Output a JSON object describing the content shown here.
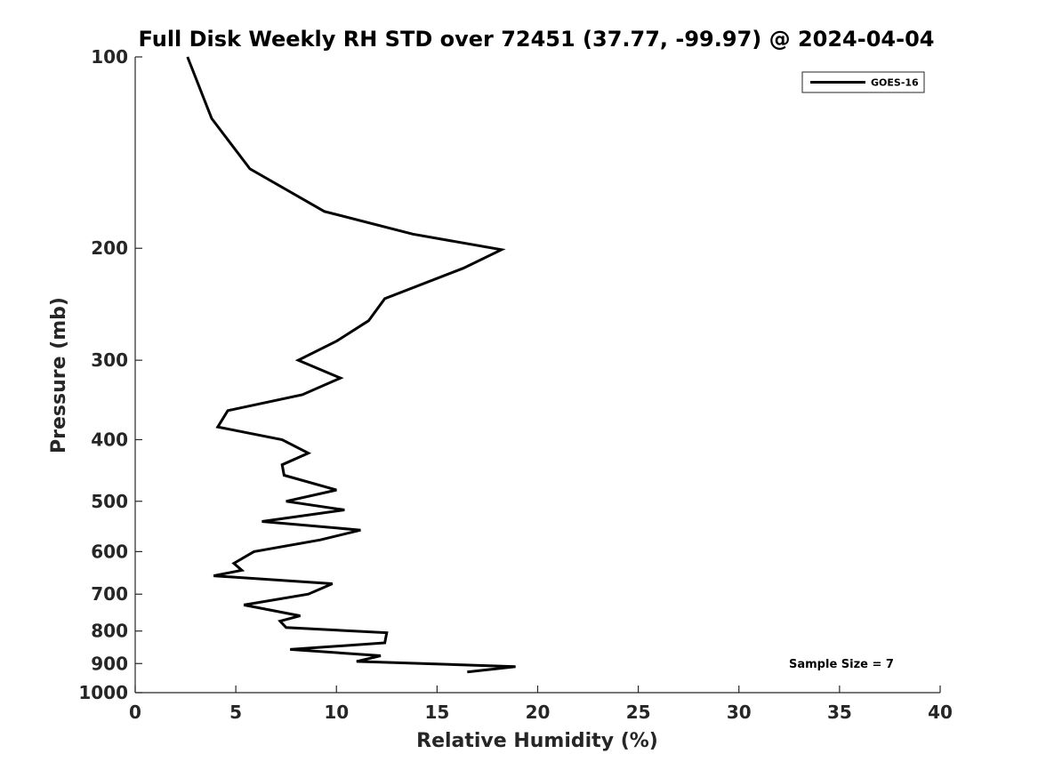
{
  "chart_data": {
    "type": "line",
    "title": "Full Disk Weekly RH STD over 72451 (37.77, -99.97) @ 2024-04-04",
    "xlabel": "Relative Humidity (%)",
    "ylabel": "Pressure (mb)",
    "xlim": [
      0,
      40
    ],
    "ylim": [
      100,
      1000
    ],
    "yscale": "log",
    "yreversed": true,
    "xticks": [
      0,
      5,
      10,
      15,
      20,
      25,
      30,
      35,
      40
    ],
    "yticks": [
      100,
      200,
      300,
      400,
      500,
      600,
      700,
      800,
      900,
      1000
    ],
    "grid": false,
    "legend_position": "top-right",
    "series": [
      {
        "name": "GOES-16",
        "color": "#000000",
        "points": [
          [
            2.6,
            100
          ],
          [
            3.8,
            125
          ],
          [
            5.7,
            150
          ],
          [
            9.4,
            175
          ],
          [
            13.8,
            190
          ],
          [
            18.2,
            201
          ],
          [
            16.3,
            215
          ],
          [
            12.4,
            240
          ],
          [
            11.6,
            260
          ],
          [
            10.0,
            280
          ],
          [
            8.1,
            300
          ],
          [
            10.2,
            320
          ],
          [
            8.3,
            340
          ],
          [
            4.6,
            360
          ],
          [
            4.1,
            382
          ],
          [
            7.3,
            400
          ],
          [
            8.6,
            420
          ],
          [
            7.3,
            438
          ],
          [
            7.4,
            455
          ],
          [
            10.0,
            480
          ],
          [
            7.5,
            500
          ],
          [
            10.4,
            516
          ],
          [
            6.3,
            538
          ],
          [
            11.2,
            555
          ],
          [
            9.2,
            575
          ],
          [
            5.9,
            600
          ],
          [
            4.9,
            626
          ],
          [
            5.3,
            642
          ],
          [
            3.9,
            655
          ],
          [
            9.8,
            674
          ],
          [
            8.6,
            700
          ],
          [
            5.4,
            728
          ],
          [
            8.2,
            757
          ],
          [
            7.2,
            772
          ],
          [
            7.5,
            790
          ],
          [
            12.5,
            805
          ],
          [
            12.4,
            835
          ],
          [
            7.7,
            855
          ],
          [
            12.2,
            875
          ],
          [
            11.0,
            893
          ],
          [
            18.9,
            910
          ],
          [
            16.5,
            928
          ]
        ]
      }
    ],
    "annotations": [
      "Sample Size = 7"
    ]
  }
}
